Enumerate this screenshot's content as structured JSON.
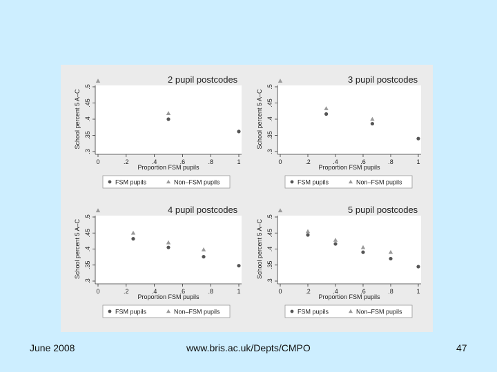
{
  "footer": {
    "date": "June 2008",
    "url": "www.bris.ac.uk/Depts/CMPO",
    "page_number": "47"
  },
  "colors": {
    "slide_background": "#cdeeff",
    "figure_background": "#ebebeb",
    "plot_background": "#ffffff",
    "fsm_marker": "#555555",
    "non_fsm_marker": "#9a9a9a"
  },
  "chart_data": [
    {
      "type": "scatter",
      "title": "2 pupil postcodes",
      "xlabel": "Proportion FSM pupils",
      "ylabel": "School percent 5 A–C",
      "xlim": [
        0,
        1
      ],
      "ylim": [
        0.3,
        0.5
      ],
      "xticks": [
        "0",
        ".2",
        ".4",
        ".6",
        ".8",
        "1"
      ],
      "yticks": [
        ".3",
        ".35",
        ".4",
        ".45",
        ".5"
      ],
      "series": [
        {
          "name": "FSM pupils",
          "marker": "circle",
          "x": [
            0.5,
            1
          ],
          "y": [
            0.4,
            0.362
          ]
        },
        {
          "name": "Non–FSM pupils",
          "marker": "triangle",
          "x": [
            0,
            0.5
          ],
          "y": [
            0.518,
            0.418
          ]
        }
      ],
      "legend": [
        "FSM pupils",
        "Non–FSM pupils"
      ]
    },
    {
      "type": "scatter",
      "title": "3 pupil postcodes",
      "xlabel": "Proportion FSM pupils",
      "ylabel": "School percent 5 A–C",
      "xlim": [
        0,
        1
      ],
      "ylim": [
        0.3,
        0.5
      ],
      "xticks": [
        "0",
        ".2",
        ".4",
        ".6",
        ".8",
        "1"
      ],
      "yticks": [
        ".3",
        ".35",
        ".4",
        ".45",
        ".5"
      ],
      "series": [
        {
          "name": "FSM pupils",
          "marker": "circle",
          "x": [
            0.333,
            0.667,
            1
          ],
          "y": [
            0.416,
            0.386,
            0.34
          ]
        },
        {
          "name": "Non–FSM pupils",
          "marker": "triangle",
          "x": [
            0,
            0.333,
            0.667
          ],
          "y": [
            0.518,
            0.433,
            0.4
          ]
        }
      ],
      "legend": [
        "FSM pupils",
        "Non–FSM pupils"
      ]
    },
    {
      "type": "scatter",
      "title": "4 pupil postcodes",
      "xlabel": "Proportion FSM pupils",
      "ylabel": "School percent 5 A–C",
      "xlim": [
        0,
        1
      ],
      "ylim": [
        0.3,
        0.5
      ],
      "xticks": [
        "0",
        ".2",
        ".4",
        ".6",
        ".8",
        "1"
      ],
      "yticks": [
        ".3",
        ".35",
        ".4",
        ".45",
        ".5"
      ],
      "series": [
        {
          "name": "FSM pupils",
          "marker": "circle",
          "x": [
            0.25,
            0.5,
            0.75,
            1
          ],
          "y": [
            0.432,
            0.405,
            0.376,
            0.348
          ]
        },
        {
          "name": "Non–FSM pupils",
          "marker": "triangle",
          "x": [
            0,
            0.25,
            0.5,
            0.75
          ],
          "y": [
            0.52,
            0.45,
            0.42,
            0.398
          ]
        }
      ],
      "legend": [
        "FSM pupils",
        "Non–FSM pupils"
      ]
    },
    {
      "type": "scatter",
      "title": "5 pupil postcodes",
      "xlabel": "Proportion FSM pupils",
      "ylabel": "School percent 5 A–C",
      "xlim": [
        0,
        1
      ],
      "ylim": [
        0.3,
        0.5
      ],
      "xticks": [
        "0",
        ".2",
        ".4",
        ".6",
        ".8",
        "1"
      ],
      "yticks": [
        ".3",
        ".35",
        ".4",
        ".45",
        ".5"
      ],
      "series": [
        {
          "name": "FSM pupils",
          "marker": "circle",
          "x": [
            0.2,
            0.4,
            0.6,
            0.8,
            1
          ],
          "y": [
            0.444,
            0.416,
            0.39,
            0.37,
            0.345
          ]
        },
        {
          "name": "Non–FSM pupils",
          "marker": "triangle",
          "x": [
            0,
            0.2,
            0.4,
            0.6,
            0.8
          ],
          "y": [
            0.52,
            0.455,
            0.428,
            0.405,
            0.39
          ]
        }
      ],
      "legend": [
        "FSM pupils",
        "Non–FSM pupils"
      ]
    }
  ]
}
